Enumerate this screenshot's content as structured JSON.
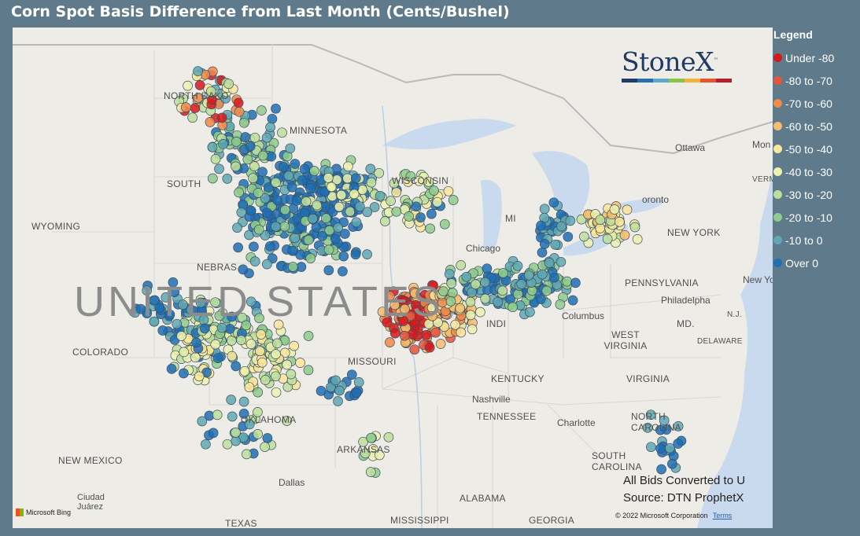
{
  "title": "Corn Spot Basis Difference from Last Month (Cents/Bushel)",
  "legend": {
    "title": "Legend",
    "items": [
      {
        "label": "Under -80",
        "color": "#d7191c"
      },
      {
        "label": "-80 to -70",
        "color": "#e8533b"
      },
      {
        "label": "-70 to -60",
        "color": "#f08a4b"
      },
      {
        "label": "-60 to -50",
        "color": "#f7bd6d"
      },
      {
        "label": "-50 to -40",
        "color": "#fbe69a"
      },
      {
        "label": "-40 to -30",
        "color": "#edf2ae"
      },
      {
        "label": "-30 to -20",
        "color": "#bddf9c"
      },
      {
        "label": "-20 to -10",
        "color": "#8fcb8c"
      },
      {
        "label": "-10 to 0",
        "color": "#5fa8b3"
      },
      {
        "label": "Over 0",
        "color": "#1f6fb4"
      }
    ]
  },
  "logo": {
    "text": "StoneX",
    "tm": "™",
    "bar_colors": [
      "#1f3b66",
      "#2a6fb0",
      "#5da9c9",
      "#8bc34a",
      "#f0b43a",
      "#e4572e",
      "#b3202a"
    ]
  },
  "notes": {
    "line1": "All Bids Converted to U",
    "line2": "Source: DTN ProphetX"
  },
  "attribution": {
    "bing": "Microsoft Bing",
    "copyright": "© 2022 Microsoft Corporation",
    "terms": "Terms"
  },
  "map_labels": {
    "country": "UNITED STATES",
    "states": {
      "north_dakota": "NORTH DAKO",
      "south_dakota": "SOUTH",
      "minnesota": "MINNESOTA",
      "wisconsin": "WISCONSIN",
      "wyoming": "WYOMING",
      "nebraska": "NEBRAS",
      "colorado": "COLORADO",
      "missouri": "MISSOURI",
      "kentucky": "KENTUCKY",
      "tennessee": "TENNESSEE",
      "oklahoma": "OKLAHOMA",
      "arkansas": "ARKANSAS",
      "new_mexico": "NEW MEXICO",
      "texas": "TEXAS",
      "mississippi": "MISSISSIPPI",
      "alabama": "ALABAMA",
      "georgia": "GEORGIA",
      "new_york": "NEW YORK",
      "pennsylvania": "PENNSYLVANIA",
      "west_virginia": "WEST VIRGINIA",
      "virginia": "VIRGINIA",
      "north_carolina": "NORTH CAROLINA",
      "south_carolina": "SOUTH CAROLINA",
      "md": "MD.",
      "delaware": "DELAWARE",
      "nj": "N.J.",
      "vermont": "VERM",
      "michigan": "MI",
      "indiana": "INDI"
    },
    "cities": {
      "ottawa": "Ottawa",
      "montreal": "Mon",
      "toronto": "oronto",
      "chicago": "Chicago",
      "columbus": "Columbus",
      "philadelphia": "Philadelpha",
      "new_york": "New Yo",
      "nashville": "Nashville",
      "charlotte": "Charlotte",
      "dallas": "Dallas",
      "ciudad_juarez": "Ciudad Juárez"
    }
  }
}
